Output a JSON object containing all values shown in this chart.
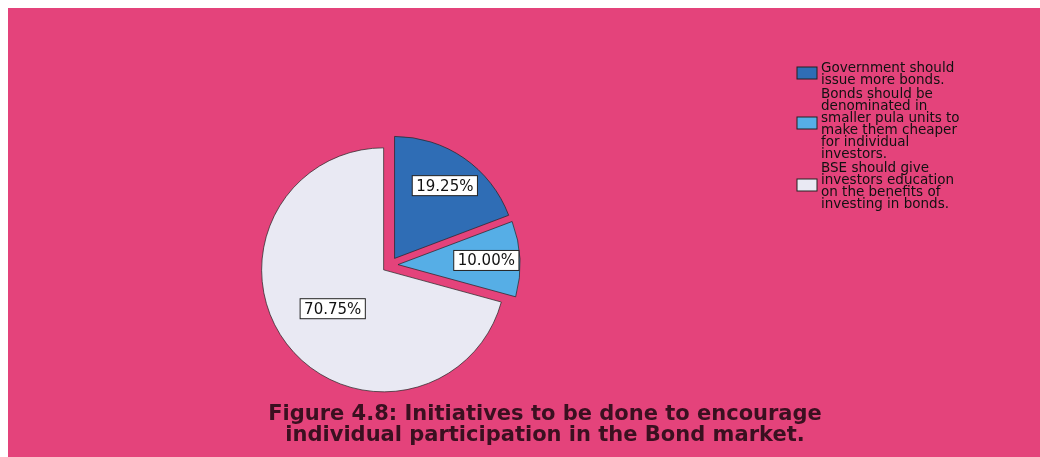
{
  "chart_data": {
    "type": "pie",
    "title": "Figure 4.8: Initiatives to  be done to encourage individual participation in the Bond market.",
    "categories": [
      "Government should issue more bonds.",
      "Bonds should be denominated in smaller pula units to make them cheaper for individual investors.",
      "BSE should give investors education on the benefits of investing in bonds."
    ],
    "values": [
      19.25,
      10.0,
      70.75
    ],
    "colors": [
      "#2f6db5",
      "#56aee6",
      "#e9e9f3"
    ],
    "value_labels": [
      "19.25%",
      "10.00%",
      "70.75%"
    ],
    "legend": "right"
  }
}
